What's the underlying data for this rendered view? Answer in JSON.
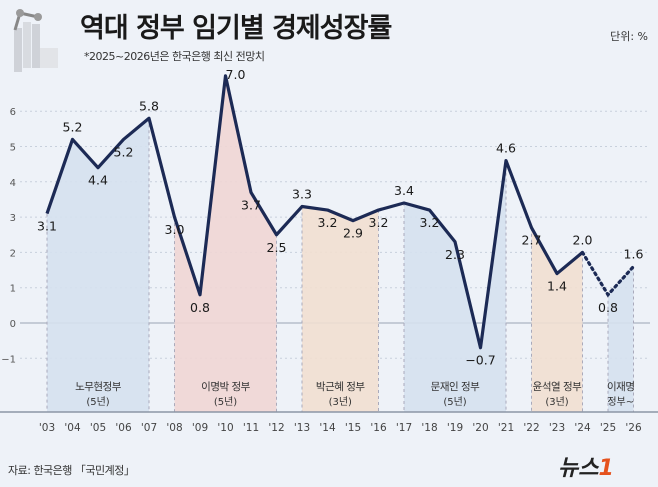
{
  "title": "역대 정부 임기별 경제성장률",
  "subtitle": "*2025~2026년은 한국은행 최신 전망치",
  "unit": "단위: %",
  "source": "자료: 한국은행 「국민계정」",
  "logo": {
    "text": "뉴스",
    "mark": "1"
  },
  "chart_data": {
    "type": "line",
    "x": [
      "'03",
      "'04",
      "'05",
      "'06",
      "'07",
      "'08",
      "'09",
      "'10",
      "'11",
      "'12",
      "'13",
      "'14",
      "'15",
      "'16",
      "'17",
      "'18",
      "'19",
      "'20",
      "'21",
      "'22",
      "'23",
      "'24",
      "'25",
      "'26"
    ],
    "values": [
      3.1,
      5.2,
      4.4,
      5.2,
      5.8,
      3.0,
      0.8,
      7.0,
      3.7,
      2.5,
      3.3,
      3.2,
      2.9,
      3.2,
      3.4,
      3.2,
      2.3,
      -0.7,
      4.6,
      2.7,
      1.4,
      2.0,
      0.8,
      1.6
    ],
    "labels": [
      "3.1",
      "5.2",
      "4.4",
      "5.2",
      "5.8",
      "3.0",
      "0.8",
      "7.0",
      "3.7",
      "2.5",
      "3.3",
      "3.2",
      "2.9",
      "3.2",
      "3.4",
      "3.2",
      "2.3",
      "−0.7",
      "4.6",
      "2.7",
      "1.4",
      "2.0",
      "0.8",
      "1.6"
    ],
    "forecast_from_index": 21,
    "yticks": [
      "−1",
      "0",
      "1",
      "2",
      "3",
      "4",
      "5",
      "6"
    ],
    "ylim": [
      -1.5,
      6.5
    ],
    "line_color": "#1c2a55",
    "governments": [
      {
        "name": "노무현정부",
        "term": "(5년)",
        "start": 0,
        "end": 4,
        "color": "#d5e1ee"
      },
      {
        "name": "이명박 정부",
        "term": "(5년)",
        "start": 5,
        "end": 9,
        "color": "#f0d6d4"
      },
      {
        "name": "박근혜 정부",
        "term": "(3년)",
        "start": 10,
        "end": 13,
        "color": "#f1dfd0"
      },
      {
        "name": "문재인 정부",
        "term": "(5년)",
        "start": 14,
        "end": 18,
        "color": "#d5e1ee"
      },
      {
        "name": "윤석열 정부",
        "term": "(3년)",
        "start": 19,
        "end": 21,
        "color": "#f1dfd0"
      },
      {
        "name": "이재명",
        "term": "정부~",
        "start": 22,
        "end": 23,
        "color": "#d5e1ee"
      }
    ]
  }
}
